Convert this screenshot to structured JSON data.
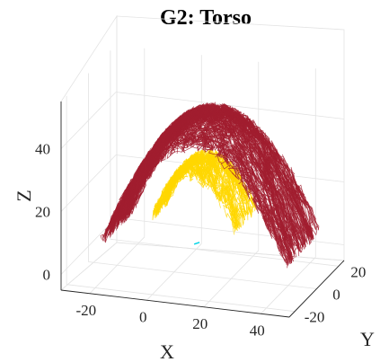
{
  "chart_data": {
    "type": "scatter",
    "title": "G2: Torso",
    "xlabel": "X",
    "ylabel": "Y",
    "zlabel": "Z",
    "xlim": [
      -30,
      50
    ],
    "ylim": [
      -25,
      25
    ],
    "zlim": [
      -5,
      55
    ],
    "xticks": [
      "-20",
      "0",
      "20",
      "40"
    ],
    "yticks": [
      "-20",
      "0",
      "20"
    ],
    "zticks": [
      "0",
      "20",
      "40"
    ],
    "grid": true,
    "series": [
      {
        "color": "#a11d2f",
        "shape": "large-dome",
        "x_range": [
          -20,
          45
        ],
        "y_range": [
          -15,
          15
        ],
        "z_peak": 47,
        "z_edge": 8
      },
      {
        "color": "#ffd700",
        "shape": "small-dome",
        "x_range": [
          -5,
          25
        ],
        "y_range": [
          -10,
          10
        ],
        "z_peak": 32,
        "z_edge": 15
      },
      {
        "color": "#00d4e6",
        "shape": "points",
        "points": [
          [
            8,
            0,
            5
          ]
        ]
      }
    ]
  }
}
